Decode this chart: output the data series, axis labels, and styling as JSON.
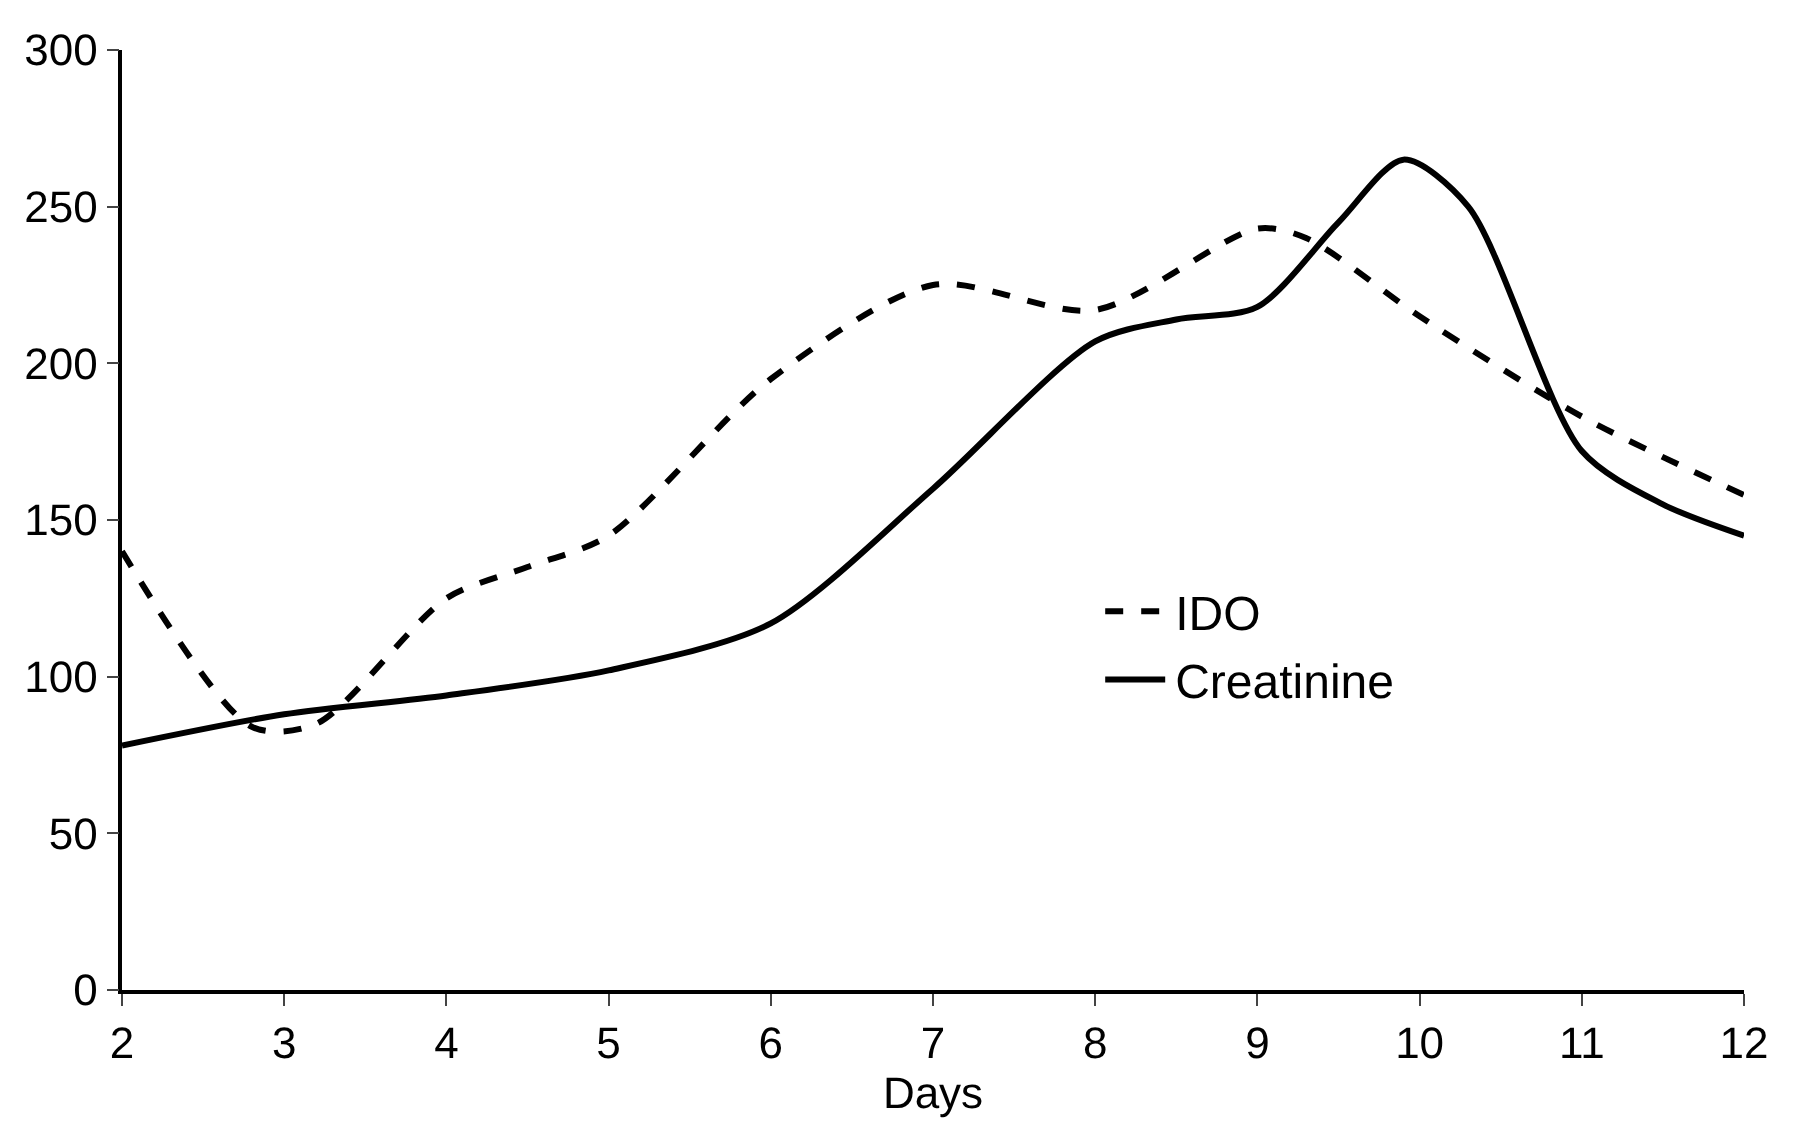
{
  "chart_data": {
    "type": "line",
    "xlabel": "Days",
    "xlim": [
      2,
      12
    ],
    "xticks": [
      2,
      3,
      4,
      5,
      6,
      7,
      8,
      9,
      10,
      11,
      12
    ],
    "ylim": [
      0,
      300
    ],
    "yticks": [
      0,
      50,
      100,
      150,
      200,
      250,
      300
    ],
    "legend": "right",
    "marker": "none",
    "series": [
      {
        "name": "IDO",
        "color": "#000000",
        "line_style": "dashed",
        "x": [
          2,
          2.8,
          3.2,
          4,
          4.5,
          5,
          6,
          7,
          8,
          9,
          9.3,
          10,
          11,
          12
        ],
        "values": [
          140,
          84,
          85,
          125,
          135,
          145,
          195,
          225,
          217,
          243,
          240,
          215,
          183,
          158
        ]
      },
      {
        "name": "Creatinine",
        "color": "#000000",
        "line_style": "solid",
        "x": [
          2,
          3,
          4,
          5,
          6,
          7,
          8,
          8.5,
          9,
          9.5,
          9.9,
          10.3,
          11,
          11.5,
          12
        ],
        "values": [
          78,
          88,
          94,
          102,
          117,
          160,
          207,
          214,
          218,
          245,
          265,
          250,
          172,
          155,
          145
        ]
      }
    ]
  }
}
